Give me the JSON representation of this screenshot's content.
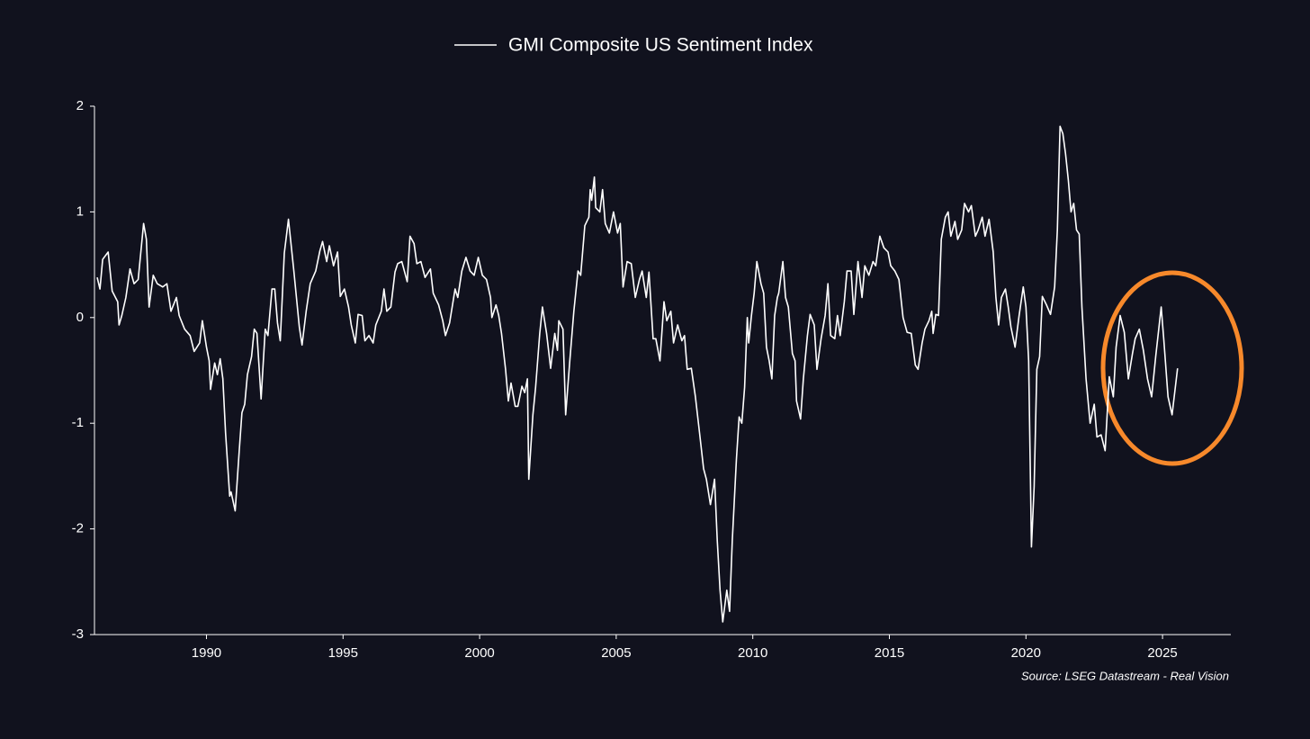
{
  "chart_data": {
    "type": "line",
    "series": [
      {
        "name": "GMI Composite US Sentiment Index",
        "color": "#ffffff",
        "values": [
          0.38,
          0.27,
          0.55,
          0.62,
          0.25,
          0.15,
          -0.07,
          0.02,
          0.19,
          0.46,
          0.32,
          0.36,
          0.89,
          0.74,
          0.1,
          0.4,
          0.32,
          0.29,
          0.32,
          0.06,
          0.19,
          0.02,
          -0.11,
          -0.17,
          -0.32,
          -0.24,
          -0.03,
          -0.28,
          -0.41,
          -0.68,
          -0.43,
          -0.54,
          -0.39,
          -0.58,
          -1.09,
          -1.69,
          -1.65,
          -1.83,
          -1.26,
          -0.9,
          -0.82,
          -0.54,
          -0.37,
          -0.11,
          -0.15,
          -0.77,
          -0.11,
          -0.17,
          0.27,
          0.27,
          -0.05,
          -0.22,
          0.61,
          0.93,
          0.44,
          -0.09,
          -0.26,
          0.06,
          0.32,
          0.44,
          0.63,
          0.72,
          0.53,
          0.68,
          0.49,
          0.62,
          0.2,
          0.27,
          0.1,
          -0.07,
          -0.24,
          0.03,
          0.02,
          -0.22,
          -0.17,
          -0.24,
          -0.07,
          0.06,
          0.27,
          0.06,
          0.1,
          0.43,
          0.51,
          0.53,
          0.34,
          0.77,
          0.7,
          0.51,
          0.53,
          0.38,
          0.46,
          0.23,
          0.12,
          -0.03,
          -0.17,
          -0.05,
          0.27,
          0.19,
          0.44,
          0.57,
          0.44,
          0.4,
          0.57,
          0.4,
          0.36,
          0.19,
          0,
          0.12,
          0.02,
          -0.15,
          -0.49,
          -0.79,
          -0.62,
          -0.84,
          -0.84,
          -0.65,
          -0.71,
          -0.58,
          -1.53,
          -0.92,
          -0.66,
          -0.15,
          0.1,
          -0.15,
          -0.48,
          -0.15,
          -0.31,
          -0.03,
          -0.11,
          -0.92,
          -0.41,
          0.06,
          0.44,
          0.4,
          0.87,
          0.95,
          1.21,
          1.11,
          1.33,
          1.04,
          1.0,
          1.21,
          0.89,
          0.8,
          1.0,
          0.8,
          0.89,
          0.29,
          0.53,
          0.51,
          0.19,
          0.36,
          0.44,
          0.19,
          0.43,
          -0.2,
          -0.2,
          -0.41,
          0.15,
          -0.03,
          0.06,
          -0.24,
          -0.07,
          -0.22,
          -0.17,
          -0.49,
          -0.48,
          -0.75,
          -1.09,
          -1.43,
          -1.53,
          -1.77,
          -1.53,
          -2.11,
          -2.58,
          -2.88,
          -2.58,
          -2.78,
          -2.11,
          -1.34,
          -0.94,
          -1.0,
          -0.66,
          0,
          -0.24,
          0.02,
          0.23,
          0.53,
          0.32,
          0.23,
          -0.28,
          -0.41,
          -0.58,
          0.02,
          0.19,
          0.23,
          0.53,
          0.19,
          0.1,
          -0.34,
          -0.41,
          -0.79,
          -0.96,
          -0.58,
          -0.17,
          0.03,
          -0.07,
          -0.49,
          -0.2,
          0.02,
          0.32,
          -0.17,
          -0.2,
          0.02,
          -0.17,
          0.15,
          0.44,
          0.44,
          0.03,
          0.53,
          0.19,
          0.49,
          0.4,
          0.53,
          0.49,
          0.77,
          0.66,
          0.62,
          0.49,
          0.44,
          0.36,
          0,
          -0.14,
          -0.15,
          -0.45,
          -0.49,
          -0.24,
          -0.11,
          -0.03,
          0.06,
          -0.15,
          0.03,
          0.02,
          0.74,
          0.95,
          1.0,
          0.77,
          0.91,
          0.74,
          0.83,
          1.08,
          1.0,
          1.06,
          0.77,
          0.83,
          0.95,
          0.77,
          0.93,
          0.62,
          0.19,
          -0.07,
          0.19,
          0.27,
          0.1,
          -0.09,
          -0.28,
          0.02,
          0.29,
          0.1,
          -0.41,
          -2.17,
          -1.6,
          -0.49,
          -0.37,
          0.2,
          0.12,
          0.03,
          0.29,
          0.83,
          1.81,
          1.74,
          1.55,
          1.3,
          1.0,
          1.08,
          0.83,
          0.79,
          0.1,
          -0.58,
          -1.0,
          -0.82,
          -1.13,
          -1.11,
          -1.26,
          -0.56,
          -0.75,
          -0.28,
          0.02,
          -0.14,
          -0.58,
          -0.34,
          -0.2,
          -0.11,
          -0.31,
          -0.58,
          -0.75,
          -0.37,
          0.1,
          -0.22,
          -0.75,
          -0.92,
          -0.48
        ]
      }
    ],
    "x": [
      1986.0,
      1986.1,
      1986.2,
      1986.4,
      1986.55,
      1986.75,
      1986.8,
      1986.9,
      1987.05,
      1987.2,
      1987.35,
      1987.5,
      1987.7,
      1987.8,
      1987.9,
      1988.05,
      1988.2,
      1988.4,
      1988.55,
      1988.7,
      1988.9,
      1989.0,
      1989.2,
      1989.4,
      1989.55,
      1989.75,
      1989.85,
      1990.0,
      1990.1,
      1990.15,
      1990.3,
      1990.4,
      1990.5,
      1990.6,
      1990.7,
      1990.85,
      1990.9,
      1991.05,
      1991.2,
      1991.3,
      1991.4,
      1991.5,
      1991.65,
      1991.75,
      1991.85,
      1992.0,
      1992.15,
      1992.25,
      1992.4,
      1992.5,
      1992.6,
      1992.7,
      1992.85,
      1993.0,
      1993.2,
      1993.4,
      1993.5,
      1993.65,
      1993.8,
      1994.0,
      1994.15,
      1994.25,
      1994.4,
      1994.5,
      1994.65,
      1994.8,
      1994.9,
      1995.05,
      1995.2,
      1995.3,
      1995.45,
      1995.55,
      1995.7,
      1995.8,
      1995.95,
      1996.1,
      1996.2,
      1996.4,
      1996.5,
      1996.6,
      1996.75,
      1996.9,
      1997.0,
      1997.15,
      1997.35,
      1997.45,
      1997.6,
      1997.7,
      1997.85,
      1998.0,
      1998.2,
      1998.3,
      1998.5,
      1998.65,
      1998.75,
      1998.9,
      1999.1,
      1999.2,
      1999.35,
      1999.5,
      1999.65,
      1999.8,
      1999.95,
      2000.1,
      2000.25,
      2000.4,
      2000.45,
      2000.6,
      2000.7,
      2000.8,
      2000.95,
      2001.05,
      2001.15,
      2001.3,
      2001.4,
      2001.55,
      2001.65,
      2001.75,
      2001.8,
      2001.95,
      2002.05,
      2002.2,
      2002.3,
      2002.45,
      2002.6,
      2002.75,
      2002.85,
      2002.9,
      2003.05,
      2003.15,
      2003.3,
      2003.45,
      2003.6,
      2003.7,
      2003.85,
      2004.0,
      2004.05,
      2004.1,
      2004.2,
      2004.25,
      2004.4,
      2004.5,
      2004.6,
      2004.75,
      2004.9,
      2005.05,
      2005.15,
      2005.25,
      2005.4,
      2005.55,
      2005.7,
      2005.85,
      2005.95,
      2006.1,
      2006.2,
      2006.35,
      2006.45,
      2006.6,
      2006.75,
      2006.85,
      2007.0,
      2007.1,
      2007.25,
      2007.4,
      2007.5,
      2007.6,
      2007.75,
      2007.9,
      2008.05,
      2008.2,
      2008.3,
      2008.45,
      2008.6,
      2008.7,
      2008.8,
      2008.9,
      2009.05,
      2009.15,
      2009.25,
      2009.4,
      2009.5,
      2009.6,
      2009.7,
      2009.8,
      2009.85,
      2009.95,
      2010.05,
      2010.15,
      2010.3,
      2010.4,
      2010.5,
      2010.6,
      2010.7,
      2010.8,
      2010.9,
      2010.95,
      2011.1,
      2011.2,
      2011.3,
      2011.45,
      2011.55,
      2011.6,
      2011.75,
      2011.85,
      2012.0,
      2012.1,
      2012.25,
      2012.35,
      2012.5,
      2012.65,
      2012.75,
      2012.85,
      2013.0,
      2013.1,
      2013.2,
      2013.35,
      2013.45,
      2013.6,
      2013.7,
      2013.85,
      2014.0,
      2014.1,
      2014.25,
      2014.4,
      2014.5,
      2014.65,
      2014.8,
      2014.95,
      2015.05,
      2015.2,
      2015.35,
      2015.5,
      2015.65,
      2015.8,
      2015.95,
      2016.05,
      2016.2,
      2016.3,
      2016.45,
      2016.55,
      2016.6,
      2016.7,
      2016.8,
      2016.9,
      2017.05,
      2017.15,
      2017.25,
      2017.4,
      2017.5,
      2017.65,
      2017.75,
      2017.9,
      2018.0,
      2018.15,
      2018.25,
      2018.4,
      2018.5,
      2018.65,
      2018.8,
      2018.9,
      2019.0,
      2019.1,
      2019.25,
      2019.35,
      2019.45,
      2019.6,
      2019.75,
      2019.9,
      2020.0,
      2020.1,
      2020.2,
      2020.3,
      2020.4,
      2020.5,
      2020.6,
      2020.75,
      2020.9,
      2021.05,
      2021.15,
      2021.25,
      2021.35,
      2021.45,
      2021.55,
      2021.65,
      2021.75,
      2021.85,
      2021.95,
      2022.05,
      2022.2,
      2022.35,
      2022.5,
      2022.6,
      2022.75,
      2022.9,
      2023.05,
      2023.2,
      2023.3,
      2023.45,
      2023.6,
      2023.75,
      2023.9,
      2024.0,
      2024.15,
      2024.3,
      2024.45,
      2024.6,
      2024.75,
      2024.95,
      2025.05,
      2025.2,
      2025.35,
      2025.55
    ],
    "xlim": [
      1985.9,
      2027.5
    ],
    "xticks": [
      1990,
      1995,
      2000,
      2005,
      2010,
      2015,
      2020,
      2025
    ],
    "ylim": [
      -3,
      2
    ],
    "yticks": [
      -3,
      -2,
      -1,
      0,
      1,
      2
    ],
    "annotations": [
      "Source: LSEG Datastream - Real Vision"
    ],
    "legend": "top"
  }
}
